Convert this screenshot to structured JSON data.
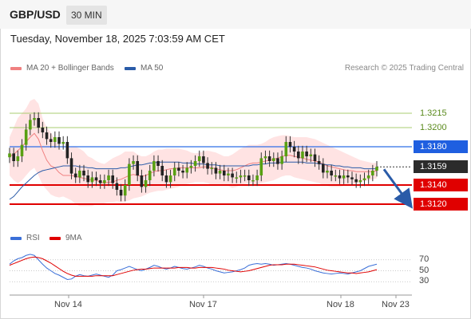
{
  "header": {
    "symbol": "GBP/USD",
    "timeframe": "30 MIN"
  },
  "datetime": "Tuesday, November 18, 2025 7:03:59 AM CET",
  "legend": {
    "ma20_label": "MA 20 + Bollinger Bands",
    "ma50_label": "MA 50",
    "rsi_label": "RSI",
    "rsi_ma_label": "9MA"
  },
  "credit": "Research © 2025 Trading Central",
  "colors": {
    "ma20": "#f08080",
    "ma50": "#2a5ba8",
    "bands": "#ffdada",
    "bull": "#58a012",
    "bear": "#222222",
    "resistance_green": "#a8cc70",
    "pivot_blue": "#2f6fe8",
    "support_red": "#e00000",
    "rsi": "#3a6fd8",
    "rsi_ma": "#e00000",
    "arrow": "#2a5ba8"
  },
  "levels": [
    {
      "value": 1.3215,
      "label": "1.3215",
      "style": "green"
    },
    {
      "value": 1.32,
      "label": "1.3200",
      "style": "green"
    },
    {
      "value": 1.318,
      "label": "1.3180",
      "style": "blue"
    },
    {
      "value": 1.3159,
      "label": "1.3159",
      "style": "current"
    },
    {
      "value": 1.314,
      "label": "1.3140",
      "style": "red"
    },
    {
      "value": 1.312,
      "label": "1.3120",
      "style": "red"
    }
  ],
  "chart_data": {
    "type": "candlestick",
    "ylim": [
      1.31,
      1.325
    ],
    "current_price": 1.3159,
    "x_ticks": [
      "Nov 14",
      "Nov 17",
      "Nov 18",
      "Nov 23"
    ],
    "close": [
      1.3173,
      1.3165,
      1.317,
      1.3182,
      1.3198,
      1.3208,
      1.321,
      1.32,
      1.3195,
      1.3188,
      1.3185,
      1.319,
      1.3183,
      1.3185,
      1.3168,
      1.3152,
      1.3148,
      1.3155,
      1.315,
      1.3143,
      1.3148,
      1.3145,
      1.3142,
      1.3145,
      1.315,
      1.3142,
      1.3135,
      1.3129,
      1.314,
      1.3162,
      1.3165,
      1.315,
      1.3138,
      1.3145,
      1.3155,
      1.3165,
      1.316,
      1.315,
      1.3143,
      1.315,
      1.3158,
      1.3155,
      1.3153,
      1.3158,
      1.316,
      1.3165,
      1.317,
      1.3163,
      1.3157,
      1.3158,
      1.3152,
      1.3155,
      1.315,
      1.3152,
      1.3148,
      1.3148,
      1.315,
      1.315,
      1.3145,
      1.3145,
      1.315,
      1.3168,
      1.317,
      1.3165,
      1.3168,
      1.3162,
      1.317,
      1.3185,
      1.318,
      1.3175,
      1.3168,
      1.3175,
      1.317,
      1.3172,
      1.3165,
      1.3162,
      1.3153,
      1.3155,
      1.315,
      1.315,
      1.3147,
      1.315,
      1.3148,
      1.3146,
      1.3143,
      1.3145,
      1.3147,
      1.315,
      1.3155,
      1.3159
    ],
    "bb_upper": [
      1.319,
      1.32,
      1.321,
      1.3215,
      1.322,
      1.3228,
      1.323,
      1.3225,
      1.321,
      1.32,
      1.3195,
      1.3188,
      1.318,
      1.3175,
      1.3178,
      1.318,
      1.318,
      1.3178,
      1.3175,
      1.317,
      1.3168,
      1.3165,
      1.3163,
      1.3162,
      1.3165,
      1.3168,
      1.317,
      1.3172,
      1.3175,
      1.3175,
      1.3175,
      1.3172,
      1.317,
      1.317,
      1.3172,
      1.3175,
      1.3177,
      1.3177,
      1.3178,
      1.3178,
      1.3178,
      1.3178,
      1.3177,
      1.3176,
      1.3174,
      1.3173,
      1.3174,
      1.3175,
      1.3176,
      1.3175,
      1.3174,
      1.3172,
      1.317,
      1.317,
      1.3172,
      1.3175,
      1.3178,
      1.318,
      1.3182,
      1.3182,
      1.3182,
      1.3183,
      1.3185,
      1.3188,
      1.319,
      1.3191,
      1.3192,
      1.3192,
      1.3191,
      1.319,
      1.319,
      1.319,
      1.319,
      1.3189,
      1.3188,
      1.3186,
      1.3184,
      1.3182,
      1.318,
      1.3178,
      1.3176,
      1.3174,
      1.3172,
      1.317,
      1.3168,
      1.3166,
      1.3165,
      1.3164,
      1.3163,
      1.3163
    ],
    "bb_lower": [
      1.315,
      1.3145,
      1.3142,
      1.3145,
      1.315,
      1.3155,
      1.3158,
      1.315,
      1.314,
      1.3135,
      1.313,
      1.3128,
      1.3127,
      1.3128,
      1.3126,
      1.3124,
      1.312,
      1.3118,
      1.3118,
      1.3118,
      1.3118,
      1.312,
      1.312,
      1.3121,
      1.3122,
      1.3122,
      1.3123,
      1.3122,
      1.3123,
      1.3124,
      1.3126,
      1.3127,
      1.3128,
      1.313,
      1.3132,
      1.3133,
      1.3134,
      1.3134,
      1.3135,
      1.3136,
      1.3137,
      1.3138,
      1.314,
      1.3141,
      1.3142,
      1.3143,
      1.3143,
      1.3143,
      1.3142,
      1.314,
      1.3139,
      1.314,
      1.314,
      1.3139,
      1.3137,
      1.3138,
      1.314,
      1.3141,
      1.3142,
      1.3141,
      1.314,
      1.3142,
      1.3143,
      1.3144,
      1.3145,
      1.3147,
      1.3149,
      1.315,
      1.315,
      1.3148,
      1.3147,
      1.3146,
      1.3145,
      1.3144,
      1.3143,
      1.3142,
      1.314,
      1.3139,
      1.3138,
      1.3138,
      1.3138,
      1.3139,
      1.314,
      1.3141,
      1.3142,
      1.3143,
      1.3144,
      1.3145,
      1.3146,
      1.3147
    ],
    "ma20": [
      1.317,
      1.3172,
      1.3176,
      1.318,
      1.3185,
      1.319,
      1.3194,
      1.3188,
      1.3176,
      1.3166,
      1.316,
      1.3158,
      1.3153,
      1.315,
      1.315,
      1.315,
      1.3149,
      1.3148,
      1.3147,
      1.3146,
      1.3145,
      1.3145,
      1.3143,
      1.3142,
      1.3143,
      1.3143,
      1.3145,
      1.3146,
      1.3148,
      1.315,
      1.3151,
      1.315,
      1.3149,
      1.315,
      1.3152,
      1.3154,
      1.3155,
      1.3155,
      1.3156,
      1.3157,
      1.3157,
      1.3158,
      1.3158,
      1.3158,
      1.3158,
      1.3158,
      1.3158,
      1.3159,
      1.3159,
      1.3158,
      1.3157,
      1.3156,
      1.3155,
      1.3155,
      1.3155,
      1.3156,
      1.3158,
      1.316,
      1.3162,
      1.3163,
      1.3163,
      1.3164,
      1.3165,
      1.3166,
      1.3167,
      1.3168,
      1.317,
      1.3171,
      1.3171,
      1.317,
      1.3169,
      1.3168,
      1.3167,
      1.3166,
      1.3165,
      1.3164,
      1.3162,
      1.316,
      1.3159,
      1.3158,
      1.3157,
      1.3156,
      1.3155,
      1.3155,
      1.3154,
      1.3154,
      1.3154,
      1.3154,
      1.3154,
      1.3155
    ],
    "ma50": [
      1.3125,
      1.3128,
      1.3133,
      1.3138,
      1.3142,
      1.3146,
      1.315,
      1.3153,
      1.3155,
      1.3156,
      1.3157,
      1.3158,
      1.3159,
      1.316,
      1.316,
      1.316,
      1.316,
      1.3159,
      1.3159,
      1.3158,
      1.3158,
      1.3157,
      1.3157,
      1.3157,
      1.3157,
      1.3157,
      1.3157,
      1.3158,
      1.3158,
      1.3159,
      1.316,
      1.3161,
      1.3161,
      1.3162,
      1.3163,
      1.3163,
      1.3164,
      1.3164,
      1.3164,
      1.3164,
      1.3164,
      1.3164,
      1.3163,
      1.3163,
      1.3163,
      1.3162,
      1.3162,
      1.3162,
      1.3161,
      1.3161,
      1.3161,
      1.316,
      1.316,
      1.316,
      1.316,
      1.316,
      1.316,
      1.316,
      1.316,
      1.3161,
      1.3161,
      1.3162,
      1.3162,
      1.3163,
      1.3163,
      1.3163,
      1.3164,
      1.3164,
      1.3164,
      1.3164,
      1.3164,
      1.3164,
      1.3163,
      1.3163,
      1.3163,
      1.3162,
      1.3162,
      1.3161,
      1.3161,
      1.316,
      1.316,
      1.3159,
      1.3159,
      1.3158,
      1.3158,
      1.3158,
      1.3157,
      1.3157,
      1.3157,
      1.3157
    ],
    "rsi": [
      62,
      68,
      72,
      74,
      78,
      80,
      78,
      70,
      62,
      55,
      50,
      45,
      42,
      38,
      34,
      35,
      40,
      43,
      41,
      40,
      42,
      44,
      42,
      40,
      38,
      42,
      50,
      52,
      55,
      58,
      55,
      52,
      50,
      53,
      56,
      60,
      58,
      55,
      53,
      55,
      58,
      56,
      54,
      53,
      55,
      57,
      60,
      58,
      55,
      53,
      50,
      48,
      46,
      47,
      48,
      50,
      52,
      55,
      60,
      62,
      63,
      62,
      63,
      62,
      60,
      61,
      62,
      63,
      62,
      60,
      58,
      56,
      55,
      53,
      50,
      48,
      46,
      45,
      44,
      45,
      46,
      45,
      44,
      46,
      48,
      50,
      54,
      58,
      60,
      62
    ],
    "rsi_ma": [
      60,
      63,
      66,
      69,
      72,
      74,
      75,
      74,
      72,
      68,
      64,
      59,
      54,
      49,
      45,
      42,
      40,
      40,
      40,
      40,
      40,
      41,
      41,
      41,
      41,
      41,
      43,
      45,
      47,
      49,
      51,
      52,
      53,
      53,
      54,
      55,
      55,
      55,
      55,
      55,
      55,
      56,
      56,
      56,
      55,
      55,
      56,
      56,
      56,
      56,
      55,
      54,
      53,
      51,
      50,
      49,
      48,
      49,
      50,
      52,
      54,
      56,
      58,
      60,
      61,
      61,
      61,
      62,
      62,
      62,
      61,
      60,
      59,
      58,
      57,
      55,
      53,
      51,
      50,
      49,
      48,
      47,
      46,
      46,
      45,
      46,
      47,
      48,
      50,
      52
    ],
    "rsi_levels": [
      70,
      50,
      30
    ],
    "projection": {
      "from": 1.3159,
      "to": 1.312
    }
  }
}
